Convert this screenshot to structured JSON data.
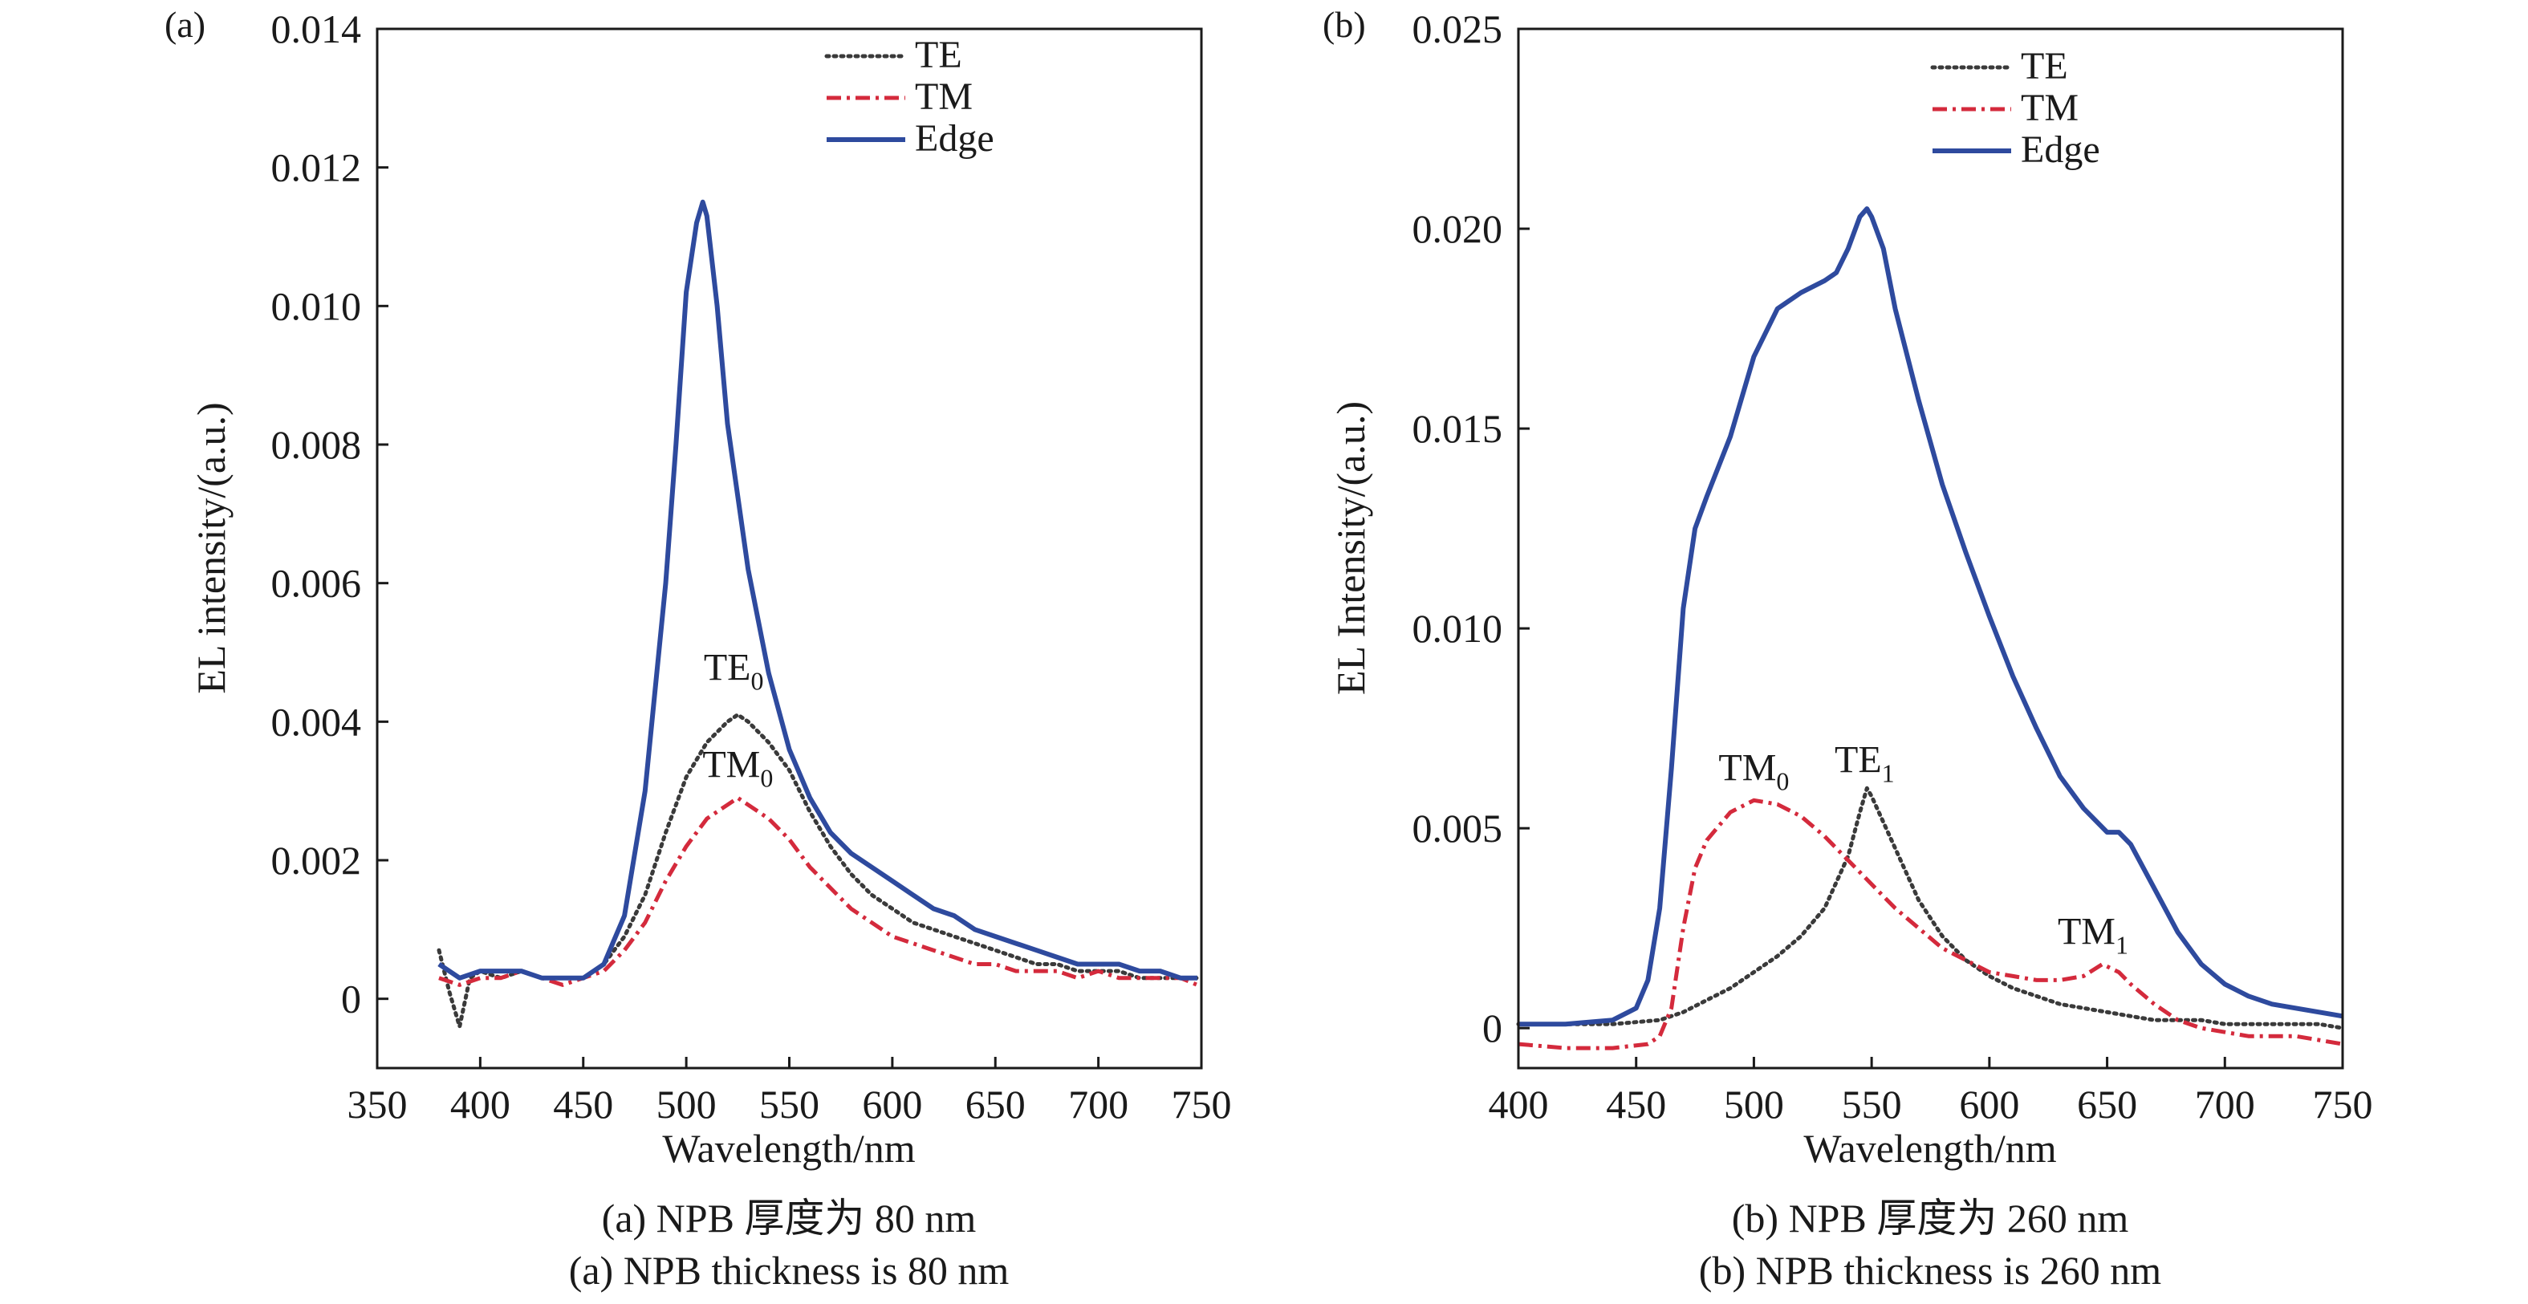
{
  "chart_data": [
    {
      "type": "line",
      "panel_label": "(a)",
      "xlabel": "Wavelength/nm",
      "ylabel": "EL intensity/(a.u.)",
      "xlim": [
        350,
        750
      ],
      "ylim": [
        -0.001,
        0.014
      ],
      "x_ticks": [
        350,
        400,
        450,
        500,
        550,
        600,
        650,
        700,
        750
      ],
      "y_ticks": [
        0,
        0.002,
        0.004,
        0.006,
        0.008,
        0.01,
        0.012,
        0.014
      ],
      "y_tick_labels": [
        "0",
        "0.002",
        "0.004",
        "0.006",
        "0.008",
        "0.010",
        "0.012",
        "0.014"
      ],
      "grid": false,
      "legend_position": "top-right",
      "series": [
        {
          "name": "TE",
          "color": "#3a3a3a",
          "style": "dotted",
          "x": [
            380,
            385,
            390,
            395,
            400,
            410,
            420,
            430,
            440,
            450,
            460,
            470,
            480,
            490,
            500,
            510,
            520,
            525,
            530,
            540,
            550,
            560,
            570,
            580,
            590,
            600,
            610,
            620,
            630,
            640,
            650,
            660,
            670,
            680,
            690,
            700,
            710,
            720,
            730,
            740,
            748
          ],
          "y": [
            0.0007,
            0.0001,
            -0.0004,
            0.0003,
            0.0004,
            0.0003,
            0.0004,
            0.0003,
            0.0003,
            0.0003,
            0.0005,
            0.0009,
            0.0015,
            0.0024,
            0.0032,
            0.0037,
            0.004,
            0.0041,
            0.004,
            0.0037,
            0.0033,
            0.0027,
            0.0022,
            0.0018,
            0.0015,
            0.0013,
            0.0011,
            0.001,
            0.0009,
            0.0008,
            0.0007,
            0.0006,
            0.0005,
            0.0005,
            0.0004,
            0.0004,
            0.0004,
            0.0003,
            0.0003,
            0.0003,
            0.0003
          ]
        },
        {
          "name": "TM",
          "color": "#d42a3c",
          "style": "dashdot",
          "x": [
            380,
            390,
            400,
            410,
            420,
            430,
            440,
            450,
            460,
            470,
            480,
            490,
            500,
            510,
            520,
            525,
            530,
            540,
            550,
            560,
            570,
            580,
            590,
            600,
            610,
            620,
            630,
            640,
            650,
            660,
            670,
            680,
            690,
            700,
            710,
            720,
            730,
            740,
            748
          ],
          "y": [
            0.0003,
            0.0002,
            0.0003,
            0.0003,
            0.0004,
            0.0003,
            0.0002,
            0.0003,
            0.0004,
            0.0007,
            0.0011,
            0.0017,
            0.0022,
            0.0026,
            0.0028,
            0.0029,
            0.0028,
            0.0026,
            0.0023,
            0.0019,
            0.0016,
            0.0013,
            0.0011,
            0.0009,
            0.0008,
            0.0007,
            0.0006,
            0.0005,
            0.0005,
            0.0004,
            0.0004,
            0.0004,
            0.0003,
            0.0004,
            0.0003,
            0.0003,
            0.0003,
            0.0003,
            0.0002
          ]
        },
        {
          "name": "Edge",
          "color": "#2e4a9e",
          "style": "solid",
          "x": [
            380,
            390,
            400,
            410,
            420,
            430,
            440,
            450,
            460,
            470,
            480,
            490,
            495,
            500,
            505,
            508,
            510,
            515,
            520,
            530,
            540,
            550,
            560,
            570,
            580,
            590,
            600,
            610,
            620,
            630,
            640,
            650,
            660,
            670,
            680,
            690,
            700,
            710,
            720,
            730,
            740,
            748
          ],
          "y": [
            0.0005,
            0.0003,
            0.0004,
            0.0004,
            0.0004,
            0.0003,
            0.0003,
            0.0003,
            0.0005,
            0.0012,
            0.003,
            0.006,
            0.008,
            0.0102,
            0.0112,
            0.0115,
            0.0113,
            0.01,
            0.0083,
            0.0062,
            0.0047,
            0.0036,
            0.0029,
            0.0024,
            0.0021,
            0.0019,
            0.0017,
            0.0015,
            0.0013,
            0.0012,
            0.001,
            0.0009,
            0.0008,
            0.0007,
            0.0006,
            0.0005,
            0.0005,
            0.0005,
            0.0004,
            0.0004,
            0.0003,
            0.0003
          ]
        }
      ],
      "annotations": [
        {
          "text": "TE",
          "sub": "0",
          "x": 523,
          "y": 0.0046
        },
        {
          "text": "TM",
          "sub": "0",
          "x": 525,
          "y": 0.0032
        }
      ]
    },
    {
      "type": "line",
      "panel_label": "(b)",
      "xlabel": "Wavelength/nm",
      "ylabel": "EL Intensity/(a.u.)",
      "xlim": [
        400,
        750
      ],
      "ylim": [
        -0.001,
        0.025
      ],
      "x_ticks": [
        400,
        450,
        500,
        550,
        600,
        650,
        700,
        750
      ],
      "y_ticks": [
        0,
        0.005,
        0.01,
        0.015,
        0.02,
        0.025
      ],
      "y_tick_labels": [
        "0",
        "0.005",
        "0.010",
        "0.015",
        "0.020",
        "0.025"
      ],
      "grid": false,
      "legend_position": "top-right",
      "series": [
        {
          "name": "TE",
          "color": "#3a3a3a",
          "style": "dotted",
          "x": [
            400,
            420,
            440,
            460,
            470,
            480,
            490,
            500,
            510,
            520,
            530,
            540,
            545,
            548,
            550,
            560,
            570,
            580,
            590,
            600,
            610,
            620,
            630,
            640,
            650,
            660,
            670,
            680,
            690,
            700,
            710,
            720,
            730,
            740,
            750
          ],
          "y": [
            0.0001,
            0.0001,
            0.0001,
            0.0002,
            0.0004,
            0.0007,
            0.001,
            0.0014,
            0.0018,
            0.0023,
            0.003,
            0.0043,
            0.0054,
            0.006,
            0.0058,
            0.0045,
            0.0032,
            0.0023,
            0.0017,
            0.0013,
            0.001,
            0.0008,
            0.0006,
            0.0005,
            0.0004,
            0.0003,
            0.0002,
            0.0002,
            0.0002,
            0.0001,
            0.0001,
            0.0001,
            0.0001,
            0.0001,
            0.0
          ]
        },
        {
          "name": "TM",
          "color": "#d42a3c",
          "style": "dashdot",
          "x": [
            400,
            420,
            440,
            455,
            460,
            465,
            470,
            475,
            480,
            490,
            500,
            510,
            520,
            530,
            540,
            550,
            560,
            570,
            580,
            590,
            600,
            610,
            620,
            630,
            640,
            648,
            655,
            660,
            670,
            680,
            690,
            700,
            710,
            720,
            730,
            740,
            750
          ],
          "y": [
            -0.0004,
            -0.0005,
            -0.0005,
            -0.0004,
            -0.0002,
            0.0005,
            0.0025,
            0.004,
            0.0047,
            0.0054,
            0.0057,
            0.0056,
            0.0053,
            0.0048,
            0.0042,
            0.0036,
            0.003,
            0.0025,
            0.002,
            0.0017,
            0.0014,
            0.0013,
            0.0012,
            0.0012,
            0.0013,
            0.0016,
            0.0014,
            0.0011,
            0.0006,
            0.0002,
            0.0,
            -0.0001,
            -0.0002,
            -0.0002,
            -0.0002,
            -0.0003,
            -0.0004
          ]
        },
        {
          "name": "Edge",
          "color": "#2e4a9e",
          "style": "solid",
          "x": [
            400,
            420,
            440,
            450,
            455,
            460,
            465,
            470,
            475,
            480,
            490,
            500,
            510,
            520,
            530,
            535,
            540,
            545,
            548,
            550,
            555,
            560,
            570,
            580,
            590,
            600,
            610,
            620,
            630,
            640,
            650,
            655,
            660,
            670,
            680,
            690,
            700,
            710,
            720,
            730,
            740,
            750
          ],
          "y": [
            0.0001,
            0.0001,
            0.0002,
            0.0005,
            0.0012,
            0.003,
            0.0065,
            0.0105,
            0.0125,
            0.0133,
            0.0148,
            0.0168,
            0.018,
            0.0184,
            0.0187,
            0.0189,
            0.0195,
            0.0203,
            0.0205,
            0.0203,
            0.0195,
            0.018,
            0.0157,
            0.0136,
            0.0119,
            0.0103,
            0.0088,
            0.0075,
            0.0063,
            0.0055,
            0.0049,
            0.0049,
            0.0046,
            0.0035,
            0.0024,
            0.0016,
            0.0011,
            0.0008,
            0.0006,
            0.0005,
            0.0004,
            0.0003
          ]
        }
      ],
      "annotations": [
        {
          "text": "TM",
          "sub": "0",
          "x": 500,
          "y": 0.0062
        },
        {
          "text": "TE",
          "sub": "1",
          "x": 547,
          "y": 0.0064
        },
        {
          "text": "TM",
          "sub": "1",
          "x": 644,
          "y": 0.0021
        }
      ]
    }
  ],
  "captions": [
    {
      "zh": "(a) NPB 厚度为 80 nm",
      "en": "(a) NPB thickness is 80 nm"
    },
    {
      "zh": "(b) NPB 厚度为 260 nm",
      "en": "(b) NPB thickness is 260 nm"
    }
  ]
}
